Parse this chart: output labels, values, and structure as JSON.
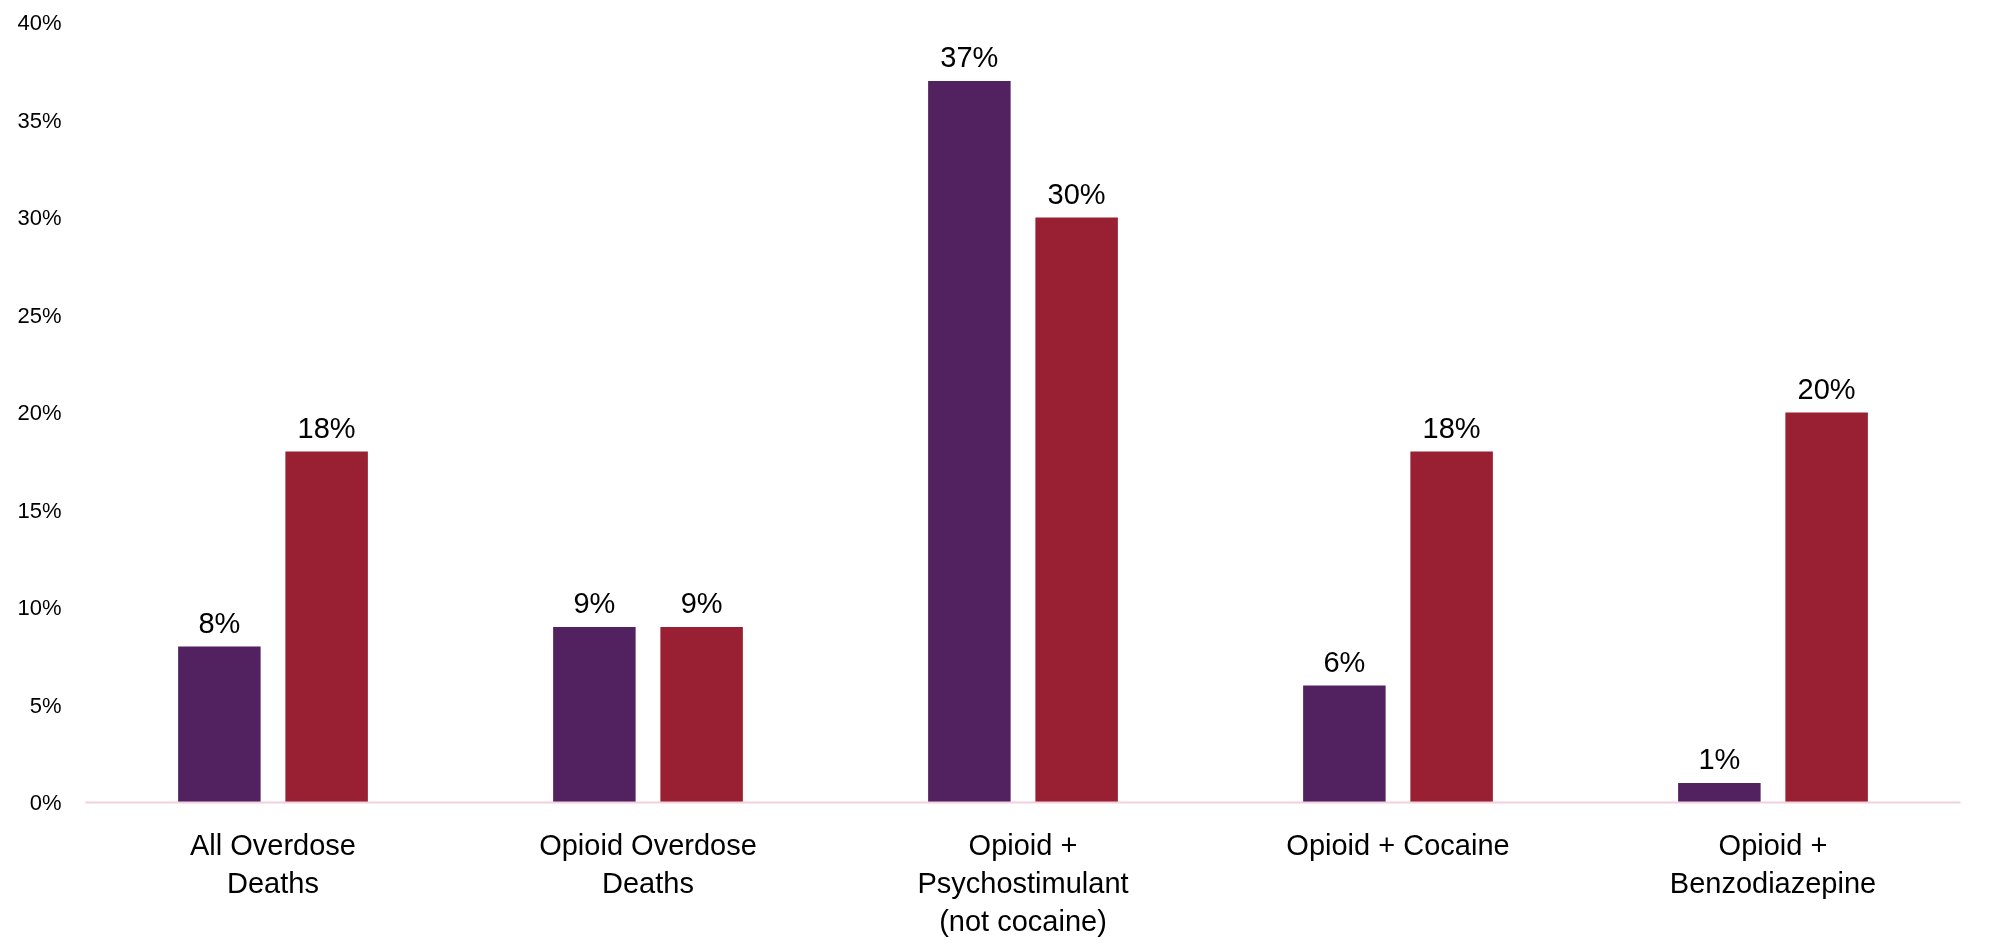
{
  "chart_data": {
    "type": "bar",
    "categories": [
      "All Overdose\nDeaths",
      "Opioid Overdose\nDeaths",
      "Opioid +\nPsychostimulant\n(not cocaine)",
      "Opioid + Cocaine",
      "Opioid +\nBenzodiazepine"
    ],
    "series": [
      {
        "color": "#52215f",
        "values": [
          8,
          9,
          37,
          6,
          1
        ],
        "value_labels": [
          "8%",
          "9%",
          "37%",
          "6%",
          "1%"
        ]
      },
      {
        "color": "#991f32",
        "values": [
          18,
          9,
          30,
          18,
          20
        ],
        "value_labels": [
          "18%",
          "9%",
          "30%",
          "18%",
          "20%"
        ]
      }
    ],
    "ylim": [
      0,
      40
    ],
    "yticks": [
      {
        "value": 0,
        "label": "0%"
      },
      {
        "value": 5,
        "label": "5%"
      },
      {
        "value": 10,
        "label": "10%"
      },
      {
        "value": 15,
        "label": "15%"
      },
      {
        "value": 20,
        "label": "20%"
      },
      {
        "value": 25,
        "label": "25%"
      },
      {
        "value": 30,
        "label": "30%"
      },
      {
        "value": 35,
        "label": "35%"
      },
      {
        "value": 40,
        "label": "40%"
      }
    ],
    "grid": false
  }
}
